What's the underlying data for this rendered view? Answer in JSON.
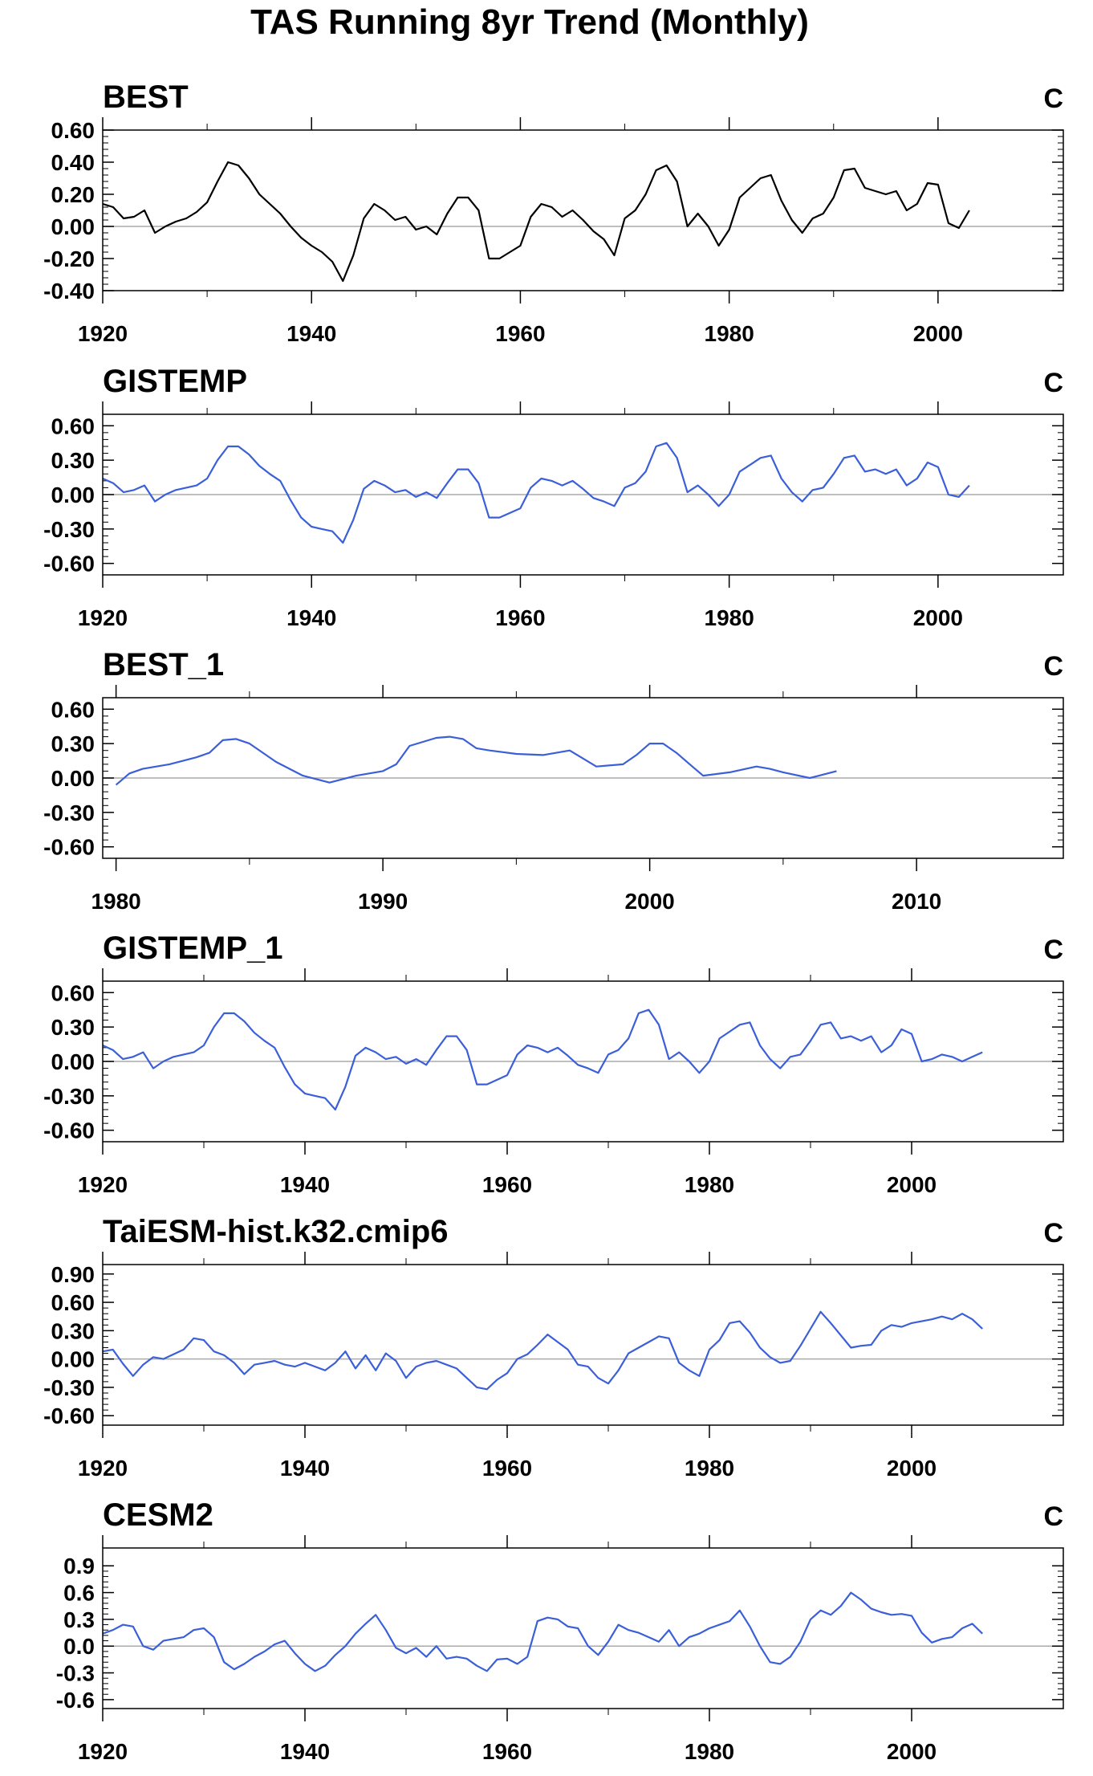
{
  "title": "TAS Running 8yr Trend (Monthly)",
  "colors": {
    "obs": "#000000",
    "model": "#3b5fd8",
    "zero": "#aaaaaa"
  },
  "chart_data": [
    {
      "type": "line",
      "title": "BEST",
      "units": "C",
      "color": "#000000",
      "xlim": [
        1920,
        2012
      ],
      "ylim": [
        -0.4,
        0.6
      ],
      "xticks": [
        1920,
        1940,
        1960,
        1980,
        2000
      ],
      "xtick_labels": [
        "1920",
        "1940",
        "1960",
        "1980",
        "2000"
      ],
      "yticks": [
        -0.4,
        -0.2,
        0.0,
        0.2,
        0.4,
        0.6
      ],
      "ytick_labels": [
        "-0.40",
        "-0.20",
        "0.00",
        "0.20",
        "0.40",
        "0.60"
      ],
      "x": [
        1920.0,
        1921.0,
        1922.0,
        1923.0,
        1924.0,
        1925.0,
        1926.0,
        1927.0,
        1928.0,
        1929.0,
        1930.0,
        1931.0,
        1932.0,
        1933.0,
        1934.0,
        1935.0,
        1936.0,
        1937.0,
        1938.0,
        1939.0,
        1940.0,
        1941.0,
        1942.0,
        1943.0,
        1944.0,
        1945.0,
        1946.0,
        1947.0,
        1948.0,
        1949.0,
        1950.0,
        1951.0,
        1952.0,
        1953.0,
        1954.0,
        1955.0,
        1956.0,
        1957.0,
        1958.0,
        1959.0,
        1960.0,
        1961.0,
        1962.0,
        1963.0,
        1964.0,
        1965.0,
        1966.0,
        1967.0,
        1968.0,
        1969.0,
        1970.0,
        1971.0,
        1972.0,
        1973.0,
        1974.0,
        1975.0,
        1976.0,
        1977.0,
        1978.0,
        1979.0,
        1980.0,
        1981.0,
        1982.0,
        1983.0,
        1984.0,
        1985.0,
        1986.0,
        1987.0,
        1988.0,
        1989.0,
        1990.0,
        1991.0,
        1992.0,
        1993.0,
        1994.0,
        1995.0,
        1996.0,
        1997.0,
        1998.0,
        1999.0,
        2000.0,
        2001.0,
        2002.0,
        2003.0
      ],
      "y": [
        0.14,
        0.12,
        0.05,
        0.06,
        0.1,
        -0.04,
        0.0,
        0.03,
        0.05,
        0.09,
        0.15,
        0.28,
        0.4,
        0.38,
        0.3,
        0.2,
        0.14,
        0.08,
        0.0,
        -0.07,
        -0.12,
        -0.16,
        -0.22,
        -0.34,
        -0.18,
        0.05,
        0.14,
        0.1,
        0.04,
        0.06,
        -0.02,
        0.0,
        -0.05,
        0.08,
        0.18,
        0.18,
        0.1,
        -0.2,
        -0.2,
        -0.16,
        -0.12,
        0.06,
        0.14,
        0.12,
        0.06,
        0.1,
        0.04,
        -0.03,
        -0.08,
        -0.18,
        0.05,
        0.1,
        0.2,
        0.35,
        0.38,
        0.28,
        0.0,
        0.08,
        0.0,
        -0.12,
        -0.02,
        0.18,
        0.24,
        0.3,
        0.32,
        0.16,
        0.04,
        -0.04,
        0.05,
        0.08,
        0.18,
        0.35,
        0.36,
        0.24,
        0.22,
        0.2,
        0.22,
        0.1,
        0.14,
        0.27,
        0.26,
        0.02,
        -0.01,
        0.1
      ]
    },
    {
      "type": "line",
      "title": "GISTEMP",
      "units": "C",
      "color": "#3b5fd8",
      "xlim": [
        1920,
        2012
      ],
      "ylim": [
        -0.7,
        0.7
      ],
      "xticks": [
        1920,
        1940,
        1960,
        1980,
        2000
      ],
      "xtick_labels": [
        "1920",
        "1940",
        "1960",
        "1980",
        "2000"
      ],
      "yticks": [
        -0.6,
        -0.3,
        0.0,
        0.3,
        0.6
      ],
      "ytick_labels": [
        "-0.60",
        "-0.30",
        "0.00",
        "0.30",
        "0.60"
      ],
      "x": [
        1920.0,
        1921.0,
        1922.0,
        1923.0,
        1924.0,
        1925.0,
        1926.0,
        1927.0,
        1928.0,
        1929.0,
        1930.0,
        1931.0,
        1932.0,
        1933.0,
        1934.0,
        1935.0,
        1936.0,
        1937.0,
        1938.0,
        1939.0,
        1940.0,
        1941.0,
        1942.0,
        1943.0,
        1944.0,
        1945.0,
        1946.0,
        1947.0,
        1948.0,
        1949.0,
        1950.0,
        1951.0,
        1952.0,
        1953.0,
        1954.0,
        1955.0,
        1956.0,
        1957.0,
        1958.0,
        1959.0,
        1960.0,
        1961.0,
        1962.0,
        1963.0,
        1964.0,
        1965.0,
        1966.0,
        1967.0,
        1968.0,
        1969.0,
        1970.0,
        1971.0,
        1972.0,
        1973.0,
        1974.0,
        1975.0,
        1976.0,
        1977.0,
        1978.0,
        1979.0,
        1980.0,
        1981.0,
        1982.0,
        1983.0,
        1984.0,
        1985.0,
        1986.0,
        1987.0,
        1988.0,
        1989.0,
        1990.0,
        1991.0,
        1992.0,
        1993.0,
        1994.0,
        1995.0,
        1996.0,
        1997.0,
        1998.0,
        1999.0,
        2000.0,
        2001.0,
        2002.0,
        2003.0
      ],
      "y": [
        0.14,
        0.1,
        0.02,
        0.04,
        0.08,
        -0.06,
        0.0,
        0.04,
        0.06,
        0.08,
        0.14,
        0.3,
        0.42,
        0.42,
        0.35,
        0.25,
        0.18,
        0.12,
        -0.05,
        -0.2,
        -0.28,
        -0.3,
        -0.32,
        -0.42,
        -0.22,
        0.05,
        0.12,
        0.08,
        0.02,
        0.04,
        -0.02,
        0.02,
        -0.03,
        0.1,
        0.22,
        0.22,
        0.1,
        -0.2,
        -0.2,
        -0.16,
        -0.12,
        0.06,
        0.14,
        0.12,
        0.08,
        0.12,
        0.05,
        -0.03,
        -0.06,
        -0.1,
        0.06,
        0.1,
        0.2,
        0.42,
        0.45,
        0.32,
        0.02,
        0.08,
        0.0,
        -0.1,
        0.0,
        0.2,
        0.26,
        0.32,
        0.34,
        0.14,
        0.02,
        -0.06,
        0.04,
        0.06,
        0.18,
        0.32,
        0.34,
        0.2,
        0.22,
        0.18,
        0.22,
        0.08,
        0.14,
        0.28,
        0.24,
        0.0,
        -0.02,
        0.08
      ]
    },
    {
      "type": "line",
      "title": "BEST_1",
      "units": "C",
      "color": "#3b5fd8",
      "xlim": [
        1979.5,
        2015.5
      ],
      "ylim": [
        -0.7,
        0.7
      ],
      "xticks": [
        1980,
        1990,
        2000,
        2010
      ],
      "xtick_labels": [
        "1980",
        "1990",
        "2000",
        "2010"
      ],
      "yticks": [
        -0.6,
        -0.3,
        0.0,
        0.3,
        0.6
      ],
      "ytick_labels": [
        "-0.60",
        "-0.30",
        "0.00",
        "0.30",
        "0.60"
      ],
      "x": [
        1980.0,
        1980.5,
        1981.0,
        1982.0,
        1983.0,
        1983.5,
        1984.0,
        1984.5,
        1985.0,
        1986.0,
        1987.0,
        1988.0,
        1989.0,
        1990.0,
        1990.5,
        1991.0,
        1992.0,
        1992.5,
        1993.0,
        1993.5,
        1994.0,
        1995.0,
        1996.0,
        1996.5,
        1997.0,
        1998.0,
        1999.0,
        1999.5,
        2000.0,
        2000.5,
        2001.0,
        2001.5,
        2002.0,
        2003.0,
        2004.0,
        2004.5,
        2005.0,
        2006.0,
        2007.0
      ],
      "y": [
        -0.06,
        0.04,
        0.08,
        0.12,
        0.18,
        0.22,
        0.33,
        0.34,
        0.3,
        0.14,
        0.02,
        -0.04,
        0.02,
        0.06,
        0.12,
        0.28,
        0.35,
        0.36,
        0.34,
        0.26,
        0.24,
        0.21,
        0.2,
        0.22,
        0.24,
        0.1,
        0.12,
        0.2,
        0.3,
        0.3,
        0.22,
        0.12,
        0.02,
        0.05,
        0.1,
        0.08,
        0.05,
        0.0,
        0.06
      ]
    },
    {
      "type": "line",
      "title": "GISTEMP_1",
      "units": "C",
      "color": "#3b5fd8",
      "xlim": [
        1920,
        2015
      ],
      "ylim": [
        -0.7,
        0.7
      ],
      "xticks": [
        1920,
        1940,
        1960,
        1980,
        2000
      ],
      "xtick_labels": [
        "1920",
        "1940",
        "1960",
        "1980",
        "2000"
      ],
      "yticks": [
        -0.6,
        -0.3,
        0.0,
        0.3,
        0.6
      ],
      "ytick_labels": [
        "-0.60",
        "-0.30",
        "0.00",
        "0.30",
        "0.60"
      ],
      "x": [
        1920.0,
        1921.0,
        1922.0,
        1923.0,
        1924.0,
        1925.0,
        1926.0,
        1927.0,
        1928.0,
        1929.0,
        1930.0,
        1931.0,
        1932.0,
        1933.0,
        1934.0,
        1935.0,
        1936.0,
        1937.0,
        1938.0,
        1939.0,
        1940.0,
        1941.0,
        1942.0,
        1943.0,
        1944.0,
        1945.0,
        1946.0,
        1947.0,
        1948.0,
        1949.0,
        1950.0,
        1951.0,
        1952.0,
        1953.0,
        1954.0,
        1955.0,
        1956.0,
        1957.0,
        1958.0,
        1959.0,
        1960.0,
        1961.0,
        1962.0,
        1963.0,
        1964.0,
        1965.0,
        1966.0,
        1967.0,
        1968.0,
        1969.0,
        1970.0,
        1971.0,
        1972.0,
        1973.0,
        1974.0,
        1975.0,
        1976.0,
        1977.0,
        1978.0,
        1979.0,
        1980.0,
        1981.0,
        1982.0,
        1983.0,
        1984.0,
        1985.0,
        1986.0,
        1987.0,
        1988.0,
        1989.0,
        1990.0,
        1991.0,
        1992.0,
        1993.0,
        1994.0,
        1995.0,
        1996.0,
        1997.0,
        1998.0,
        1999.0,
        2000.0,
        2001.0,
        2002.0,
        2003.0,
        2004.0,
        2005.0,
        2006.0,
        2007.0
      ],
      "y": [
        0.14,
        0.1,
        0.02,
        0.04,
        0.08,
        -0.06,
        0.0,
        0.04,
        0.06,
        0.08,
        0.14,
        0.3,
        0.42,
        0.42,
        0.35,
        0.25,
        0.18,
        0.12,
        -0.05,
        -0.2,
        -0.28,
        -0.3,
        -0.32,
        -0.42,
        -0.22,
        0.05,
        0.12,
        0.08,
        0.02,
        0.04,
        -0.02,
        0.02,
        -0.03,
        0.1,
        0.22,
        0.22,
        0.1,
        -0.2,
        -0.2,
        -0.16,
        -0.12,
        0.06,
        0.14,
        0.12,
        0.08,
        0.12,
        0.05,
        -0.03,
        -0.06,
        -0.1,
        0.06,
        0.1,
        0.2,
        0.42,
        0.45,
        0.32,
        0.02,
        0.08,
        0.0,
        -0.1,
        0.0,
        0.2,
        0.26,
        0.32,
        0.34,
        0.14,
        0.02,
        -0.06,
        0.04,
        0.06,
        0.18,
        0.32,
        0.34,
        0.2,
        0.22,
        0.18,
        0.22,
        0.08,
        0.14,
        0.28,
        0.24,
        0.0,
        0.02,
        0.06,
        0.04,
        0.0,
        0.04,
        0.08
      ]
    },
    {
      "type": "line",
      "title": "TaiESM-hist.k32.cmip6",
      "units": "C",
      "color": "#3b5fd8",
      "xlim": [
        1920,
        2015
      ],
      "ylim": [
        -0.7,
        1.0
      ],
      "xticks": [
        1920,
        1940,
        1960,
        1980,
        2000
      ],
      "xtick_labels": [
        "1920",
        "1940",
        "1960",
        "1980",
        "2000"
      ],
      "yticks": [
        -0.6,
        -0.3,
        0.0,
        0.3,
        0.6,
        0.9
      ],
      "ytick_labels": [
        "-0.60",
        "-0.30",
        "0.00",
        "0.30",
        "0.60",
        "0.90"
      ],
      "x": [
        1920.0,
        1921.0,
        1922.0,
        1923.0,
        1924.0,
        1925.0,
        1926.0,
        1927.0,
        1928.0,
        1929.0,
        1930.0,
        1931.0,
        1932.0,
        1933.0,
        1934.0,
        1935.0,
        1936.0,
        1937.0,
        1938.0,
        1939.0,
        1940.0,
        1941.0,
        1942.0,
        1943.0,
        1944.0,
        1945.0,
        1946.0,
        1947.0,
        1948.0,
        1949.0,
        1950.0,
        1951.0,
        1952.0,
        1953.0,
        1954.0,
        1955.0,
        1956.0,
        1957.0,
        1958.0,
        1959.0,
        1960.0,
        1961.0,
        1962.0,
        1963.0,
        1964.0,
        1965.0,
        1966.0,
        1967.0,
        1968.0,
        1969.0,
        1970.0,
        1971.0,
        1972.0,
        1973.0,
        1974.0,
        1975.0,
        1976.0,
        1977.0,
        1978.0,
        1979.0,
        1980.0,
        1981.0,
        1982.0,
        1983.0,
        1984.0,
        1985.0,
        1986.0,
        1987.0,
        1988.0,
        1989.0,
        1990.0,
        1991.0,
        1992.0,
        1993.0,
        1994.0,
        1995.0,
        1996.0,
        1997.0,
        1998.0,
        1999.0,
        2000.0,
        2001.0,
        2002.0,
        2003.0,
        2004.0,
        2005.0,
        2006.0,
        2007.0
      ],
      "y": [
        0.08,
        0.1,
        -0.05,
        -0.18,
        -0.06,
        0.02,
        0.0,
        0.05,
        0.1,
        0.22,
        0.2,
        0.08,
        0.04,
        -0.04,
        -0.16,
        -0.06,
        -0.04,
        -0.02,
        -0.06,
        -0.08,
        -0.04,
        -0.08,
        -0.12,
        -0.04,
        0.08,
        -0.1,
        0.04,
        -0.12,
        0.06,
        -0.02,
        -0.2,
        -0.08,
        -0.04,
        -0.02,
        -0.06,
        -0.1,
        -0.2,
        -0.3,
        -0.32,
        -0.22,
        -0.15,
        0.0,
        0.05,
        0.15,
        0.26,
        0.18,
        0.1,
        -0.06,
        -0.08,
        -0.2,
        -0.26,
        -0.12,
        0.06,
        0.12,
        0.18,
        0.24,
        0.22,
        -0.04,
        -0.12,
        -0.18,
        0.1,
        0.2,
        0.38,
        0.4,
        0.28,
        0.12,
        0.02,
        -0.04,
        -0.02,
        0.14,
        0.32,
        0.5,
        0.38,
        0.25,
        0.12,
        0.14,
        0.15,
        0.3,
        0.36,
        0.34,
        0.38,
        0.4,
        0.42,
        0.45,
        0.42,
        0.48,
        0.42,
        0.32
      ]
    },
    {
      "type": "line",
      "title": "CESM2",
      "units": "C",
      "color": "#3b5fd8",
      "xlim": [
        1920,
        2015
      ],
      "ylim": [
        -0.7,
        1.1
      ],
      "xticks": [
        1920,
        1940,
        1960,
        1980,
        2000
      ],
      "xtick_labels": [
        "1920",
        "1940",
        "1960",
        "1980",
        "2000"
      ],
      "yticks": [
        -0.6,
        -0.3,
        0.0,
        0.3,
        0.6,
        0.9
      ],
      "ytick_labels": [
        "-0.6",
        "-0.3",
        "0.0",
        "0.3",
        "0.6",
        "0.9"
      ],
      "x": [
        1920.0,
        1921.0,
        1922.0,
        1923.0,
        1924.0,
        1925.0,
        1926.0,
        1927.0,
        1928.0,
        1929.0,
        1930.0,
        1931.0,
        1932.0,
        1933.0,
        1934.0,
        1935.0,
        1936.0,
        1937.0,
        1938.0,
        1939.0,
        1940.0,
        1941.0,
        1942.0,
        1943.0,
        1944.0,
        1945.0,
        1946.0,
        1947.0,
        1948.0,
        1949.0,
        1950.0,
        1951.0,
        1952.0,
        1953.0,
        1954.0,
        1955.0,
        1956.0,
        1957.0,
        1958.0,
        1959.0,
        1960.0,
        1961.0,
        1962.0,
        1963.0,
        1964.0,
        1965.0,
        1966.0,
        1967.0,
        1968.0,
        1969.0,
        1970.0,
        1971.0,
        1972.0,
        1973.0,
        1974.0,
        1975.0,
        1976.0,
        1977.0,
        1978.0,
        1979.0,
        1980.0,
        1981.0,
        1982.0,
        1983.0,
        1984.0,
        1985.0,
        1986.0,
        1987.0,
        1988.0,
        1989.0,
        1990.0,
        1991.0,
        1992.0,
        1993.0,
        1994.0,
        1995.0,
        1996.0,
        1997.0,
        1998.0,
        1999.0,
        2000.0,
        2001.0,
        2002.0,
        2003.0,
        2004.0,
        2005.0,
        2006.0,
        2007.0
      ],
      "y": [
        0.14,
        0.18,
        0.24,
        0.22,
        0.0,
        -0.04,
        0.06,
        0.08,
        0.1,
        0.18,
        0.2,
        0.1,
        -0.18,
        -0.26,
        -0.2,
        -0.12,
        -0.06,
        0.02,
        0.06,
        -0.08,
        -0.2,
        -0.28,
        -0.22,
        -0.1,
        0.0,
        0.14,
        0.25,
        0.35,
        0.18,
        -0.02,
        -0.08,
        -0.02,
        -0.12,
        0.0,
        -0.14,
        -0.12,
        -0.14,
        -0.22,
        -0.28,
        -0.15,
        -0.14,
        -0.2,
        -0.12,
        0.28,
        0.32,
        0.3,
        0.22,
        0.2,
        0.0,
        -0.1,
        0.05,
        0.24,
        0.18,
        0.15,
        0.1,
        0.05,
        0.18,
        0.0,
        0.1,
        0.14,
        0.2,
        0.24,
        0.28,
        0.4,
        0.22,
        0.0,
        -0.18,
        -0.2,
        -0.12,
        0.05,
        0.3,
        0.4,
        0.35,
        0.45,
        0.6,
        0.52,
        0.42,
        0.38,
        0.35,
        0.36,
        0.34,
        0.15,
        0.04,
        0.08,
        0.1,
        0.2,
        0.25,
        0.14
      ]
    }
  ]
}
